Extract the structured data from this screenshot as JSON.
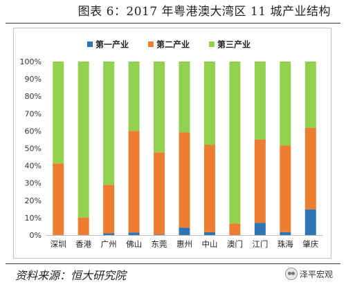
{
  "page": {
    "title": "图表 6：2017 年粤港澳大湾区 11 城产业结构",
    "source": "资料来源：恒大研究院",
    "watermark": "泽平宏观"
  },
  "chart_data": {
    "type": "bar",
    "stacked": true,
    "categories": [
      "深圳",
      "香港",
      "广州",
      "佛山",
      "东莞",
      "惠州",
      "中山",
      "澳门",
      "江门",
      "珠海",
      "肇庆"
    ],
    "series": [
      {
        "name": "第一产业",
        "color": "#2e75b6",
        "values": [
          0.1,
          0.1,
          1.0,
          1.5,
          0.3,
          4.3,
          1.7,
          0.0,
          7.0,
          1.7,
          14.8
        ]
      },
      {
        "name": "第二产业",
        "color": "#ed7d31",
        "values": [
          41.2,
          10.0,
          28.0,
          58.5,
          47.4,
          54.9,
          50.3,
          6.7,
          48.1,
          49.9,
          47.0
        ]
      },
      {
        "name": "第三产业",
        "color": "#92d050",
        "values": [
          58.7,
          89.9,
          71.0,
          40.0,
          52.3,
          40.8,
          48.0,
          93.3,
          44.9,
          48.4,
          38.2
        ]
      }
    ],
    "y_ticks": [
      "0%",
      "10%",
      "20%",
      "30%",
      "40%",
      "50%",
      "60%",
      "70%",
      "80%",
      "90%",
      "100%"
    ],
    "ylim": [
      0,
      100
    ],
    "grid": false,
    "legend": "top"
  }
}
